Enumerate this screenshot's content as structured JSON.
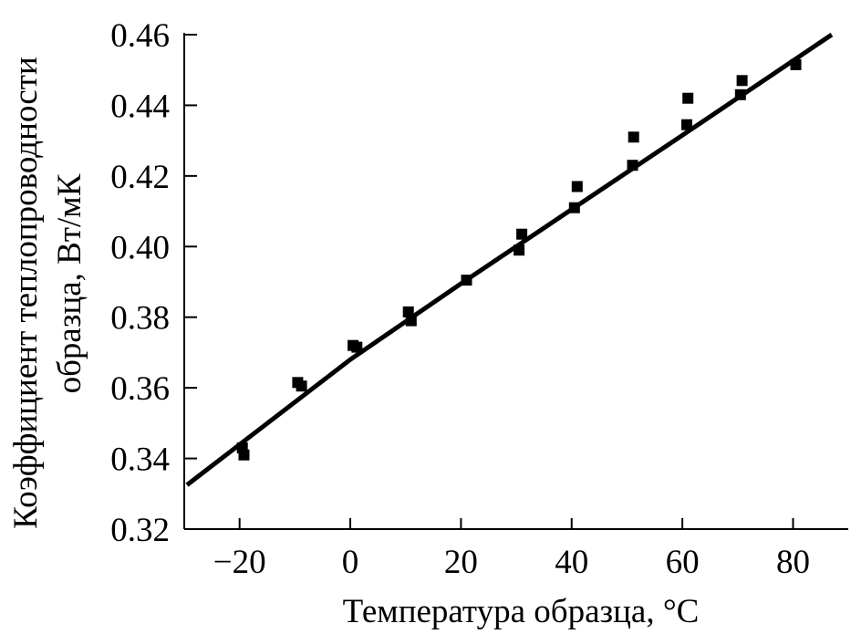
{
  "chart_data": {
    "type": "scatter",
    "title": "",
    "xlabel": "Температура образца, °C",
    "ylabel_line1": "Коэффициент теплопроводности",
    "ylabel_line2": "образца, Вт/мК",
    "xlim": [
      -30,
      88
    ],
    "ylim": [
      0.32,
      0.46
    ],
    "x_ticks": [
      -20,
      0,
      20,
      40,
      60,
      80
    ],
    "x_tick_labels": [
      "−20",
      "0",
      "20",
      "40",
      "60",
      "80"
    ],
    "y_ticks": [
      0.32,
      0.34,
      0.36,
      0.38,
      0.4,
      0.42,
      0.44,
      0.46
    ],
    "y_tick_labels": [
      "0.32",
      "0.34",
      "0.36",
      "0.38",
      "0.40",
      "0.42",
      "0.44",
      "0.46"
    ],
    "grid": false,
    "series": [
      {
        "marker": "square",
        "color": "#000000",
        "points": [
          {
            "x": -19.5,
            "y": 0.343
          },
          {
            "x": -19.2,
            "y": 0.341
          },
          {
            "x": -9.5,
            "y": 0.3615
          },
          {
            "x": -8.8,
            "y": 0.3605
          },
          {
            "x": 0.5,
            "y": 0.372
          },
          {
            "x": 1.2,
            "y": 0.3715
          },
          {
            "x": 10.5,
            "y": 0.3815
          },
          {
            "x": 11.0,
            "y": 0.379
          },
          {
            "x": 21.0,
            "y": 0.3905
          },
          {
            "x": 30.5,
            "y": 0.399
          },
          {
            "x": 31.0,
            "y": 0.4035
          },
          {
            "x": 40.5,
            "y": 0.411
          },
          {
            "x": 41.0,
            "y": 0.417
          },
          {
            "x": 51.0,
            "y": 0.423
          },
          {
            "x": 51.2,
            "y": 0.431
          },
          {
            "x": 60.8,
            "y": 0.4345
          },
          {
            "x": 61.0,
            "y": 0.442
          },
          {
            "x": 70.5,
            "y": 0.443
          },
          {
            "x": 70.8,
            "y": 0.447
          },
          {
            "x": 80.5,
            "y": 0.4515
          }
        ]
      }
    ],
    "fit_line": {
      "color": "#000000",
      "points": [
        {
          "x": -29.5,
          "y": 0.3325
        },
        {
          "x": 0,
          "y": 0.368
        },
        {
          "x": 20,
          "y": 0.3895
        },
        {
          "x": 40,
          "y": 0.4105
        },
        {
          "x": 60,
          "y": 0.4315
        },
        {
          "x": 87,
          "y": 0.46
        }
      ]
    }
  }
}
